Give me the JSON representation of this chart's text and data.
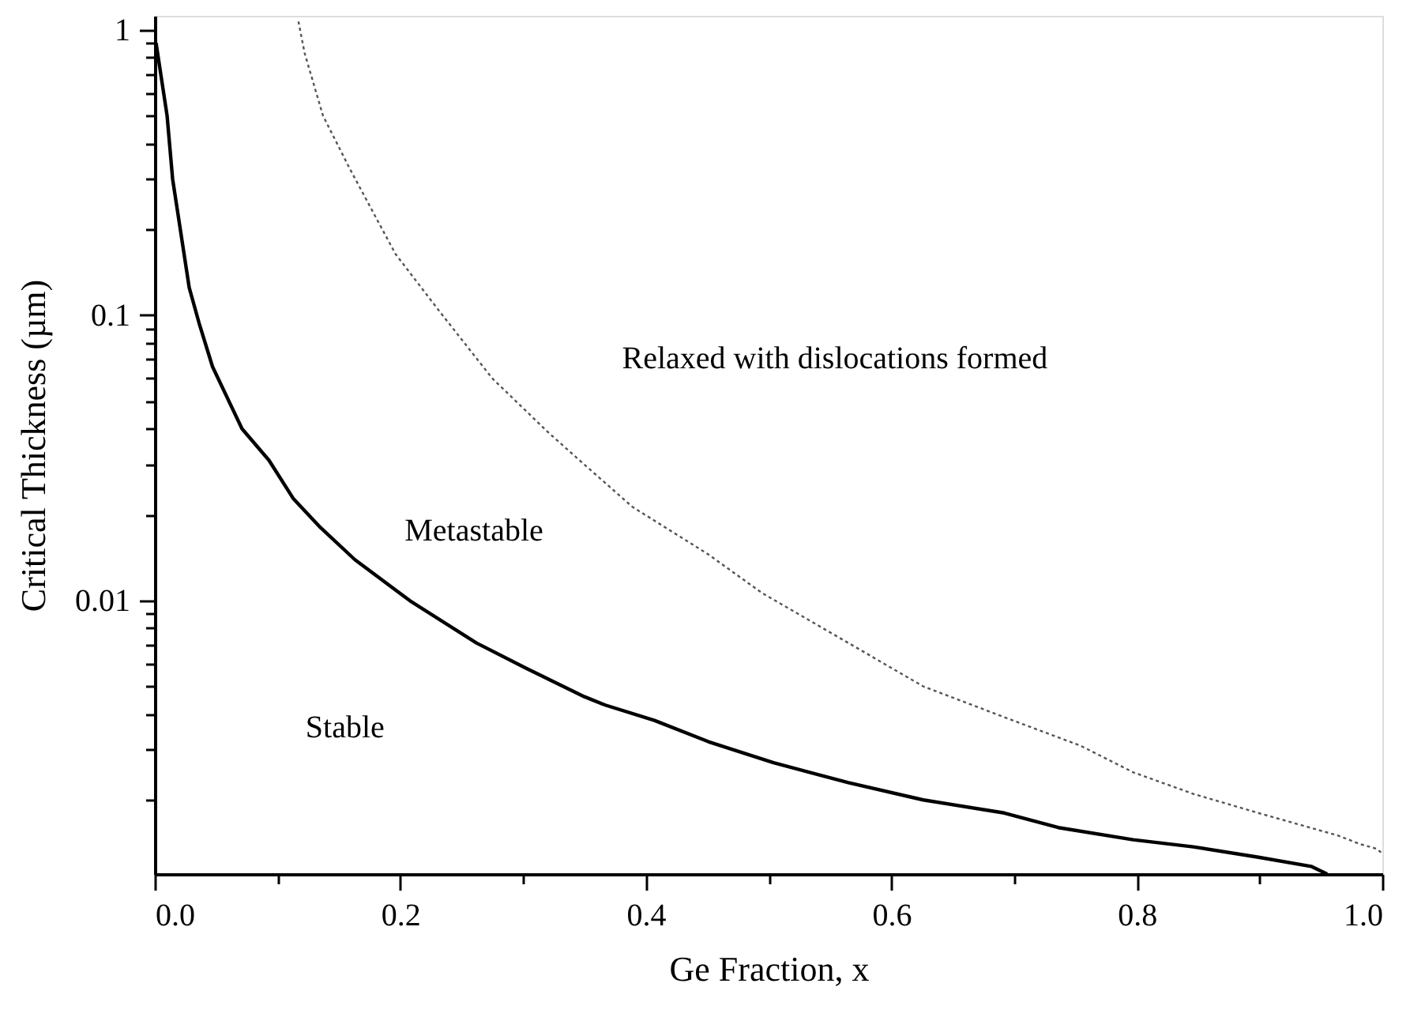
{
  "chart_data": {
    "type": "line",
    "xlabel": "Ge Fraction, x",
    "ylabel": "Critical Thickness (µm)",
    "log": "y",
    "grid": false,
    "xlim": [
      0,
      1
    ],
    "ylim": [
      0.0011,
      1.12
    ],
    "xticks": [
      {
        "value": 0,
        "label": "0.0"
      },
      {
        "value": 0.1,
        "label": null
      },
      {
        "value": 0.2,
        "label": "0.2"
      },
      {
        "value": 0.3,
        "label": null
      },
      {
        "value": 0.4,
        "label": "0.4"
      },
      {
        "value": 0.5,
        "label": null
      },
      {
        "value": 0.6,
        "label": "0.6"
      },
      {
        "value": 0.7,
        "label": null
      },
      {
        "value": 0.8,
        "label": "0.8"
      },
      {
        "value": 0.9,
        "label": null
      },
      {
        "value": 1,
        "label": "1.0"
      }
    ],
    "yticks": [
      {
        "value": 0.002,
        "label": null
      },
      {
        "value": 0.003,
        "label": null
      },
      {
        "value": 0.004,
        "label": null
      },
      {
        "value": 0.005,
        "label": null
      },
      {
        "value": 0.006,
        "label": null
      },
      {
        "value": 0.007,
        "label": null
      },
      {
        "value": 0.008,
        "label": null
      },
      {
        "value": 0.009,
        "label": null
      },
      0.01,
      {
        "value": 0.02,
        "label": null
      },
      {
        "value": 0.03,
        "label": null
      },
      {
        "value": 0.04,
        "label": null
      },
      {
        "value": 0.05,
        "label": null
      },
      {
        "value": 0.06,
        "label": null
      },
      {
        "value": 0.07,
        "label": null
      },
      {
        "value": 0.08,
        "label": null
      },
      {
        "value": 0.09,
        "label": null
      },
      0.1,
      {
        "value": 0.2,
        "label": null
      },
      {
        "value": 0.3,
        "label": null
      },
      {
        "value": 0.4,
        "label": null
      },
      {
        "value": 0.5,
        "label": null
      },
      {
        "value": 0.6,
        "label": null
      },
      {
        "value": 0.7,
        "label": null
      },
      {
        "value": 0.8,
        "label": null
      },
      {
        "value": 0.9,
        "label": null
      },
      1
    ],
    "series": [
      {
        "color": "#000000",
        "line_style": "solid",
        "x": [
          0.001,
          0.01,
          0.0145,
          0.028,
          0.036,
          0.047,
          0.071,
          0.093,
          0.113,
          0.135,
          0.163,
          0.209,
          0.262,
          0.302,
          0.35,
          0.367,
          0.407,
          0.451,
          0.504,
          0.565,
          0.626,
          0.692,
          0.736,
          0.797,
          0.846,
          0.899,
          0.942,
          0.955
        ],
        "values": [
          0.9,
          0.5,
          0.3,
          0.125,
          0.094,
          0.066,
          0.04,
          0.031,
          0.0227,
          0.018,
          0.0139,
          0.0099,
          0.0071,
          0.0058,
          0.0046,
          0.0043,
          0.0038,
          0.0032,
          0.0027,
          0.0023,
          0.002,
          0.0018,
          0.0016,
          0.00145,
          0.00137,
          0.00126,
          0.00117,
          0.0011
        ]
      },
      {
        "color": "#555555",
        "line_style": "dotted",
        "x": [
          0.117,
          0.122,
          0.137,
          0.159,
          0.196,
          0.232,
          0.275,
          0.32,
          0.346,
          0.389,
          0.451,
          0.495,
          0.565,
          0.626,
          0.692,
          0.754,
          0.797,
          0.846,
          0.899,
          0.964,
          0.982,
          0.995,
          1.0
        ],
        "values": [
          1.07,
          0.83,
          0.5,
          0.325,
          0.164,
          0.103,
          0.06,
          0.039,
          0.031,
          0.0213,
          0.0145,
          0.0106,
          0.0071,
          0.005,
          0.0039,
          0.0031,
          0.0025,
          0.0021,
          0.0018,
          0.0015,
          0.0014,
          0.00135,
          0.0013
        ]
      }
    ],
    "annotations": [
      "Relaxed with dislocations formed",
      "Metastable",
      "Stable"
    ]
  }
}
